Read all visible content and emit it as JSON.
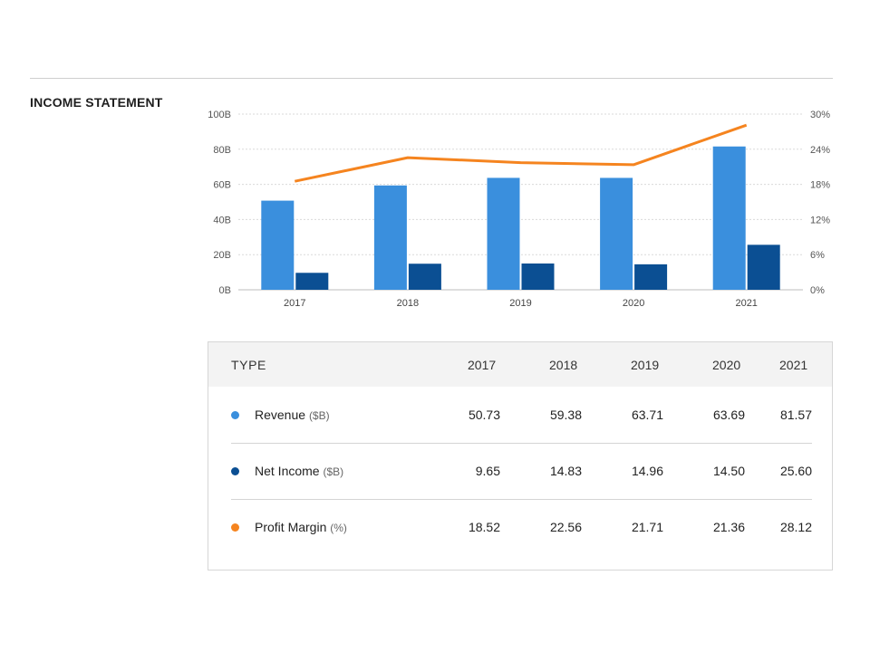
{
  "section_title": "INCOME STATEMENT",
  "colors": {
    "revenue": "#3a8fdd",
    "net_income": "#0b4f93",
    "profit_margin": "#f5841f"
  },
  "chart_data": {
    "type": "bar",
    "categories": [
      "2017",
      "2018",
      "2019",
      "2020",
      "2021"
    ],
    "series": [
      {
        "name": "Revenue",
        "kind": "bar",
        "axis": "left",
        "values": [
          50.73,
          59.38,
          63.71,
          63.69,
          81.57
        ]
      },
      {
        "name": "Net Income",
        "kind": "bar",
        "axis": "left",
        "values": [
          9.65,
          14.83,
          14.96,
          14.5,
          25.6
        ]
      },
      {
        "name": "Profit Margin",
        "kind": "line",
        "axis": "right",
        "values": [
          18.52,
          22.56,
          21.71,
          21.36,
          28.12
        ]
      }
    ],
    "ylim": [
      0,
      100
    ],
    "y2lim": [
      0,
      30
    ],
    "y_ticks": [
      "0B",
      "20B",
      "40B",
      "60B",
      "80B",
      "100B"
    ],
    "y2_ticks": [
      "0%",
      "6%",
      "12%",
      "18%",
      "24%",
      "30%"
    ],
    "grid": true
  },
  "table": {
    "header_type": "TYPE",
    "years": [
      "2017",
      "2018",
      "2019",
      "2020",
      "2021"
    ],
    "rows": [
      {
        "label": "Revenue",
        "unit": "($B)",
        "values": [
          "50.73",
          "59.38",
          "63.71",
          "63.69",
          "81.57"
        ]
      },
      {
        "label": "Net Income",
        "unit": "($B)",
        "values": [
          "9.65",
          "14.83",
          "14.96",
          "14.50",
          "25.60"
        ]
      },
      {
        "label": "Profit Margin",
        "unit": "(%)",
        "values": [
          "18.52",
          "22.56",
          "21.71",
          "21.36",
          "28.12"
        ]
      }
    ]
  }
}
